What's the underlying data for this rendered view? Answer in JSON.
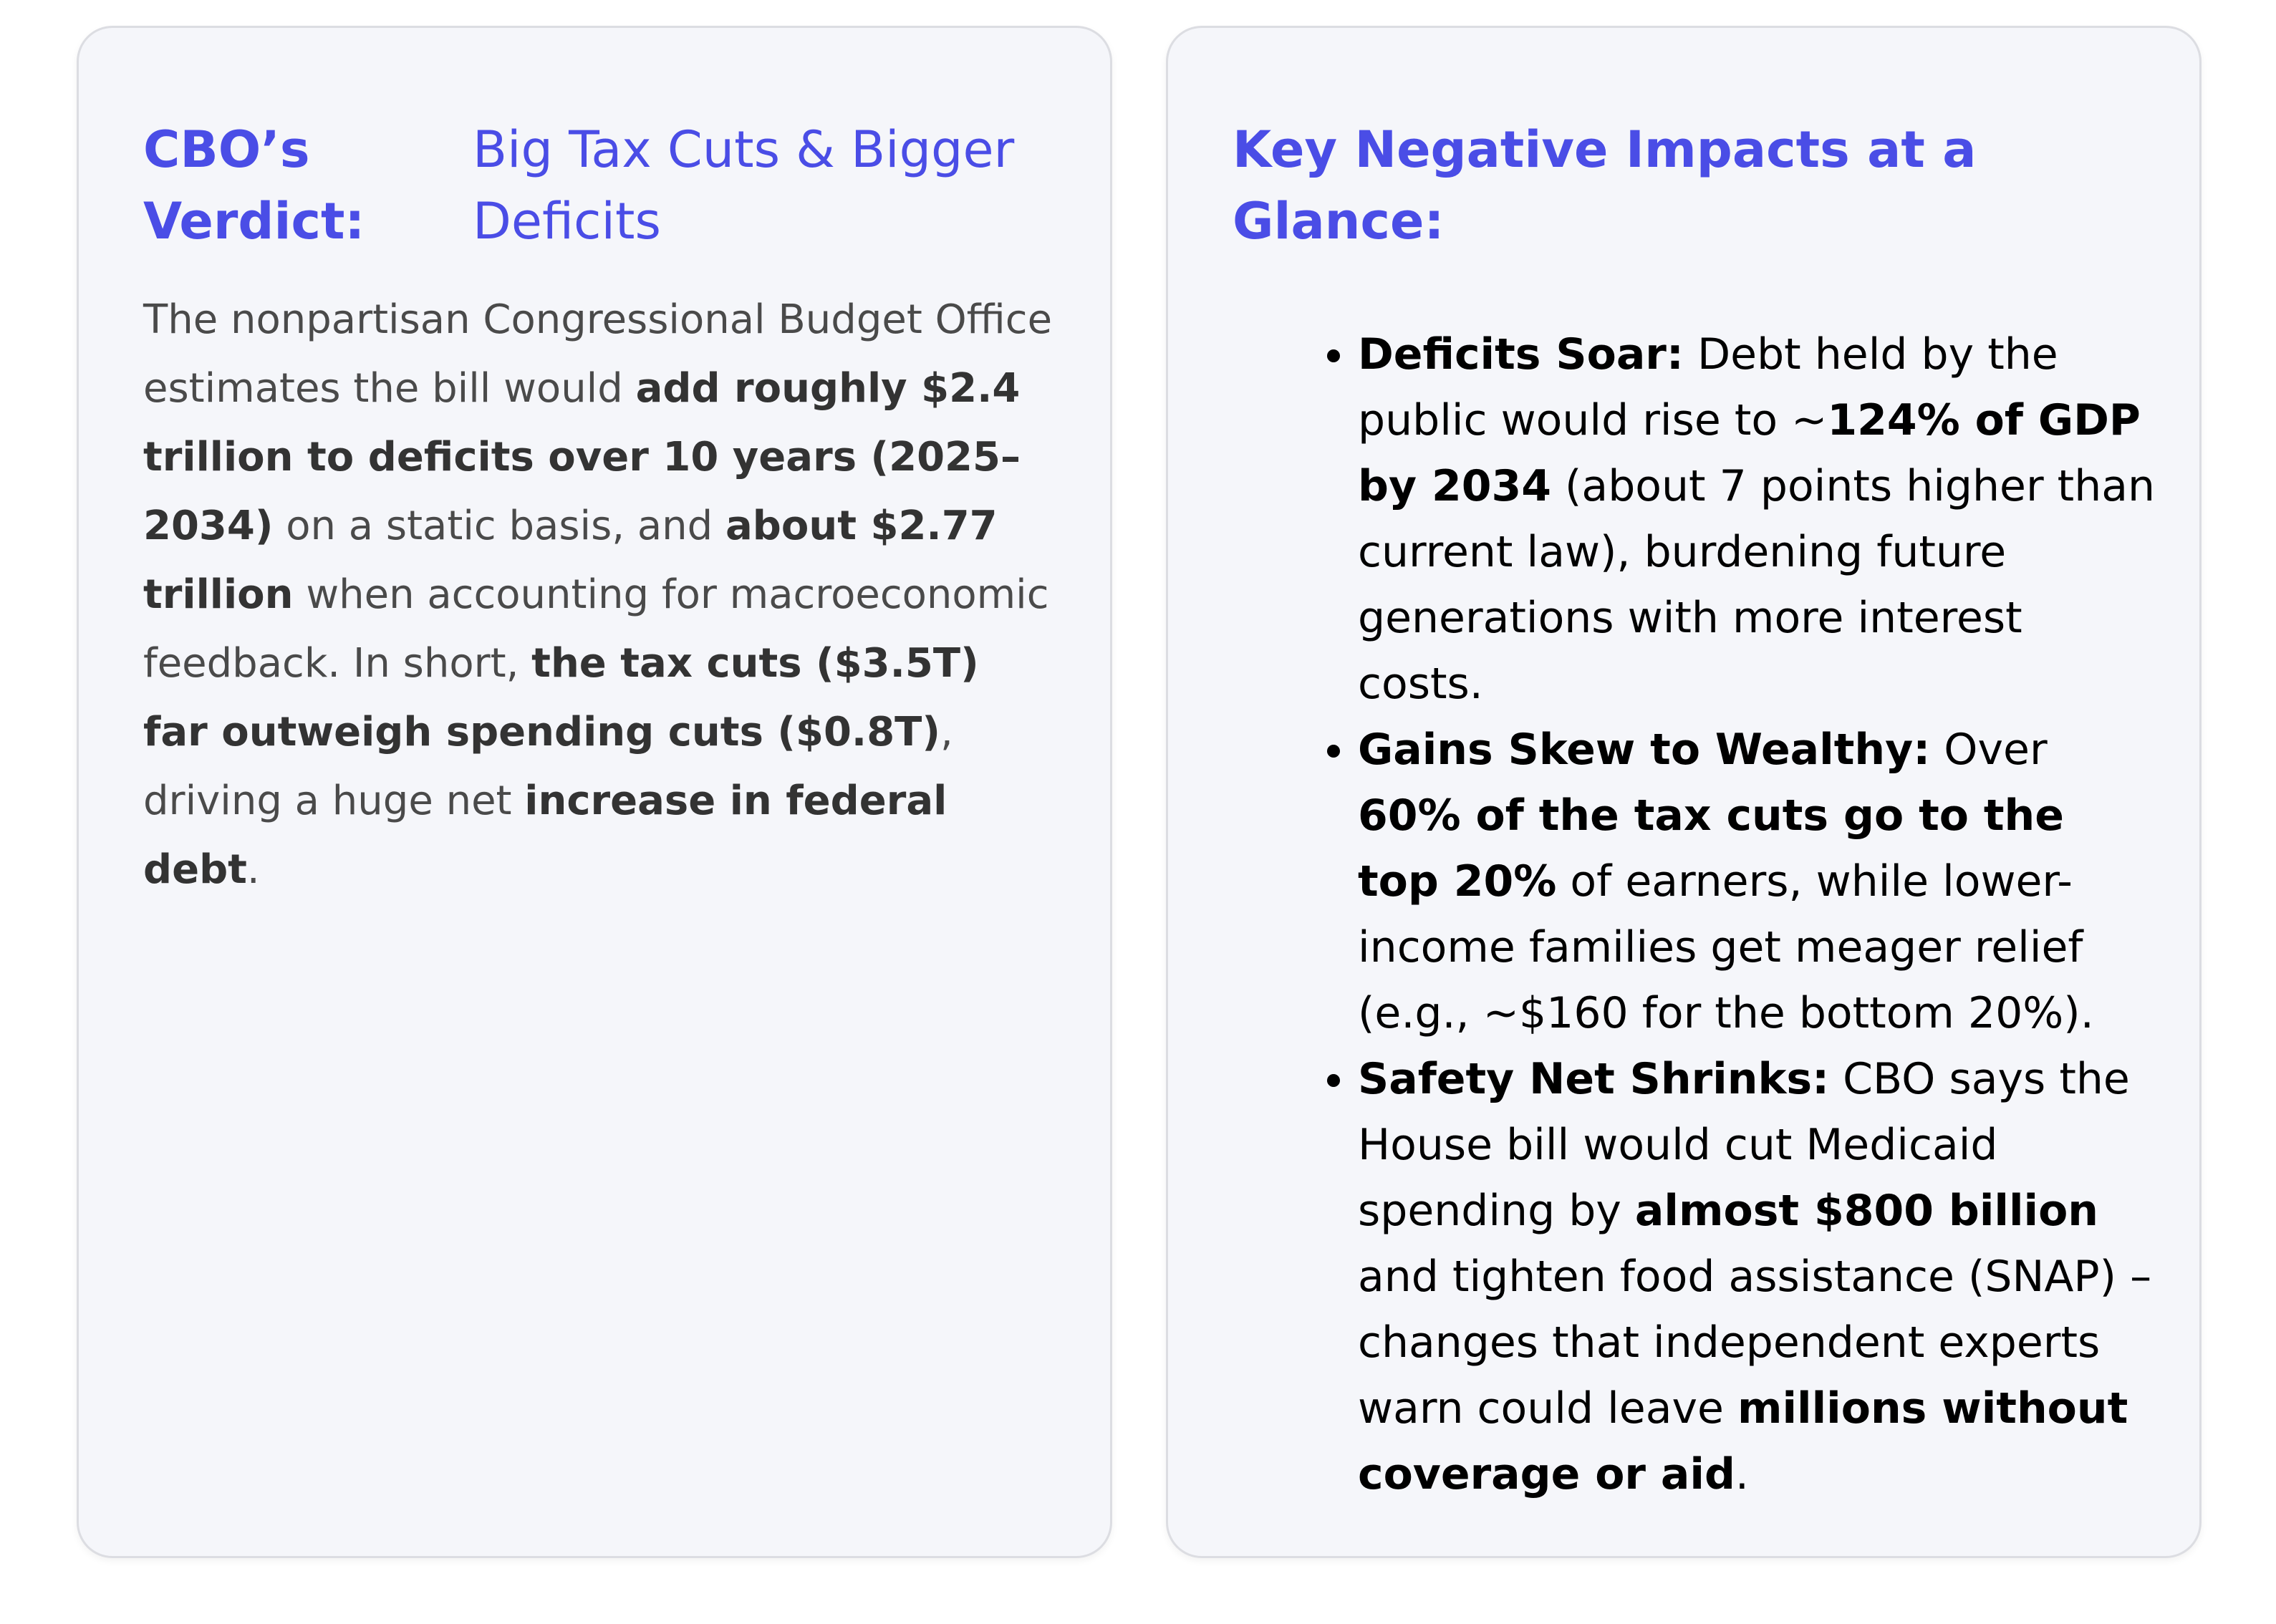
{
  "left_card": {
    "heading_label": "CBO’s Verdict:",
    "heading_text": "Big Tax Cuts & Bigger Deficits",
    "paragraph": [
      {
        "text": "The nonpartisan Congressional Budget Office estimates the bill would "
      },
      {
        "text": "add roughly $2.4 trillion to deficits over 10 years (2025–2034)",
        "bold": true
      },
      {
        "text": " on a static basis, and "
      },
      {
        "text": "about $2.77 trillion",
        "bold": true
      },
      {
        "text": " when accounting for macroeconomic feedback. In short, "
      },
      {
        "text": "the tax cuts ($3.5T) far outweigh spending cuts ($0.8T)",
        "bold": true
      },
      {
        "text": ", driving a huge net "
      },
      {
        "text": "increase in federal debt",
        "bold": true
      },
      {
        "text": "."
      }
    ]
  },
  "right_card": {
    "heading": "Key Negative Impacts at a Glance:",
    "items": [
      [
        {
          "text": "Deficits Soar:",
          "bold": true
        },
        {
          "text": " Debt held by the public would rise to ~"
        },
        {
          "text": "124% of GDP by 2034",
          "bold": true
        },
        {
          "text": " (about 7 points higher than current law), burdening future generations with more interest costs."
        }
      ],
      [
        {
          "text": "Gains Skew to Wealthy:",
          "bold": true
        },
        {
          "text": " Over "
        },
        {
          "text": "60% of the tax cuts go to the top 20%",
          "bold": true
        },
        {
          "text": " of earners, while lower-income families get meager relief (e.g., ~$160 for the bottom 20%)."
        }
      ],
      [
        {
          "text": "Safety Net Shrinks:",
          "bold": true
        },
        {
          "text": " CBO says the House bill would cut Medicaid spending by "
        },
        {
          "text": "almost $800 billion",
          "bold": true
        },
        {
          "text": " and tighten food assistance (SNAP) – changes that independent experts warn could leave "
        },
        {
          "text": "millions without coverage or aid",
          "bold": true
        },
        {
          "text": "."
        }
      ]
    ]
  }
}
